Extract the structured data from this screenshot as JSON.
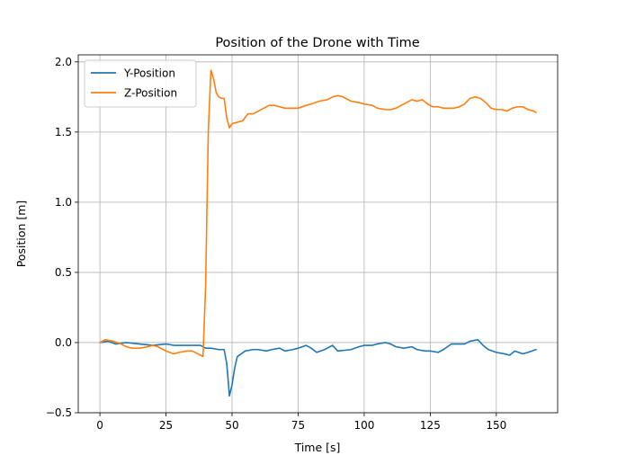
{
  "chart_data": {
    "type": "line",
    "title": "Position of the Drone with Time",
    "xlabel": "Time [s]",
    "ylabel": "Position [m]",
    "xlim": [
      -8.2,
      173.2
    ],
    "ylim": [
      -0.5,
      2.05
    ],
    "xticks": [
      0,
      25,
      50,
      75,
      100,
      125,
      150
    ],
    "yticks": [
      -0.5,
      0.0,
      0.5,
      1.0,
      1.5,
      2.0
    ],
    "xtick_labels": [
      "0",
      "25",
      "50",
      "75",
      "100",
      "125",
      "150"
    ],
    "ytick_labels": [
      "−0.5",
      "0.0",
      "0.5",
      "1.0",
      "1.5",
      "2.0"
    ],
    "grid": true,
    "legend_position": "top-left",
    "series": [
      {
        "name": "Y-Position",
        "color": "#1f77b4",
        "points": [
          [
            0,
            0
          ],
          [
            3,
            0.01
          ],
          [
            6,
            -0.01
          ],
          [
            10,
            0
          ],
          [
            15,
            -0.01
          ],
          [
            20,
            -0.02
          ],
          [
            25,
            -0.01
          ],
          [
            28,
            -0.02
          ],
          [
            30,
            -0.02
          ],
          [
            35,
            -0.02
          ],
          [
            38,
            -0.02
          ],
          [
            40,
            -0.04
          ],
          [
            42,
            -0.04
          ],
          [
            45,
            -0.05
          ],
          [
            47,
            -0.05
          ],
          [
            48,
            -0.15
          ],
          [
            49,
            -0.38
          ],
          [
            50,
            -0.3
          ],
          [
            51,
            -0.18
          ],
          [
            52,
            -0.1
          ],
          [
            55,
            -0.06
          ],
          [
            58,
            -0.05
          ],
          [
            60,
            -0.05
          ],
          [
            63,
            -0.06
          ],
          [
            65,
            -0.05
          ],
          [
            68,
            -0.04
          ],
          [
            70,
            -0.06
          ],
          [
            73,
            -0.05
          ],
          [
            75,
            -0.04
          ],
          [
            78,
            -0.02
          ],
          [
            80,
            -0.04
          ],
          [
            82,
            -0.07
          ],
          [
            85,
            -0.05
          ],
          [
            88,
            -0.02
          ],
          [
            90,
            -0.06
          ],
          [
            95,
            -0.05
          ],
          [
            98,
            -0.03
          ],
          [
            100,
            -0.02
          ],
          [
            103,
            -0.02
          ],
          [
            105,
            -0.01
          ],
          [
            108,
            0
          ],
          [
            110,
            -0.01
          ],
          [
            112,
            -0.03
          ],
          [
            115,
            -0.04
          ],
          [
            118,
            -0.03
          ],
          [
            120,
            -0.05
          ],
          [
            123,
            -0.06
          ],
          [
            125,
            -0.06
          ],
          [
            128,
            -0.07
          ],
          [
            130,
            -0.05
          ],
          [
            133,
            -0.01
          ],
          [
            136,
            -0.01
          ],
          [
            138,
            -0.01
          ],
          [
            140,
            0.01
          ],
          [
            143,
            0.02
          ],
          [
            145,
            -0.02
          ],
          [
            147,
            -0.05
          ],
          [
            150,
            -0.07
          ],
          [
            153,
            -0.08
          ],
          [
            155,
            -0.09
          ],
          [
            157,
            -0.06
          ],
          [
            160,
            -0.08
          ],
          [
            162,
            -0.07
          ],
          [
            165,
            -0.05
          ]
        ]
      },
      {
        "name": "Z-Position",
        "color": "#ff7f0e",
        "points": [
          [
            0,
            0
          ],
          [
            2,
            0.02
          ],
          [
            5,
            0.01
          ],
          [
            8,
            -0.01
          ],
          [
            10,
            -0.03
          ],
          [
            12,
            -0.04
          ],
          [
            15,
            -0.04
          ],
          [
            18,
            -0.03
          ],
          [
            20,
            -0.02
          ],
          [
            22,
            -0.03
          ],
          [
            25,
            -0.06
          ],
          [
            28,
            -0.08
          ],
          [
            30,
            -0.07
          ],
          [
            33,
            -0.06
          ],
          [
            35,
            -0.06
          ],
          [
            38,
            -0.09
          ],
          [
            39,
            -0.1
          ],
          [
            40,
            0.4
          ],
          [
            41,
            1.5
          ],
          [
            42,
            1.94
          ],
          [
            43,
            1.88
          ],
          [
            44,
            1.78
          ],
          [
            45,
            1.75
          ],
          [
            46,
            1.74
          ],
          [
            47,
            1.74
          ],
          [
            48,
            1.6
          ],
          [
            49,
            1.53
          ],
          [
            50,
            1.56
          ],
          [
            52,
            1.57
          ],
          [
            54,
            1.58
          ],
          [
            56,
            1.63
          ],
          [
            58,
            1.63
          ],
          [
            60,
            1.65
          ],
          [
            62,
            1.67
          ],
          [
            64,
            1.69
          ],
          [
            66,
            1.69
          ],
          [
            68,
            1.68
          ],
          [
            70,
            1.67
          ],
          [
            72,
            1.67
          ],
          [
            75,
            1.67
          ],
          [
            78,
            1.69
          ],
          [
            80,
            1.7
          ],
          [
            83,
            1.72
          ],
          [
            86,
            1.73
          ],
          [
            88,
            1.75
          ],
          [
            90,
            1.76
          ],
          [
            92,
            1.75
          ],
          [
            95,
            1.72
          ],
          [
            98,
            1.71
          ],
          [
            100,
            1.7
          ],
          [
            103,
            1.69
          ],
          [
            105,
            1.67
          ],
          [
            108,
            1.66
          ],
          [
            110,
            1.66
          ],
          [
            112,
            1.67
          ],
          [
            114,
            1.69
          ],
          [
            116,
            1.71
          ],
          [
            118,
            1.73
          ],
          [
            120,
            1.72
          ],
          [
            122,
            1.73
          ],
          [
            124,
            1.7
          ],
          [
            126,
            1.68
          ],
          [
            128,
            1.68
          ],
          [
            130,
            1.67
          ],
          [
            132,
            1.67
          ],
          [
            134,
            1.67
          ],
          [
            136,
            1.68
          ],
          [
            138,
            1.7
          ],
          [
            140,
            1.74
          ],
          [
            142,
            1.75
          ],
          [
            144,
            1.74
          ],
          [
            146,
            1.71
          ],
          [
            148,
            1.67
          ],
          [
            150,
            1.66
          ],
          [
            152,
            1.66
          ],
          [
            154,
            1.65
          ],
          [
            156,
            1.67
          ],
          [
            158,
            1.68
          ],
          [
            160,
            1.68
          ],
          [
            162,
            1.66
          ],
          [
            164,
            1.65
          ],
          [
            165,
            1.64
          ]
        ]
      }
    ]
  }
}
